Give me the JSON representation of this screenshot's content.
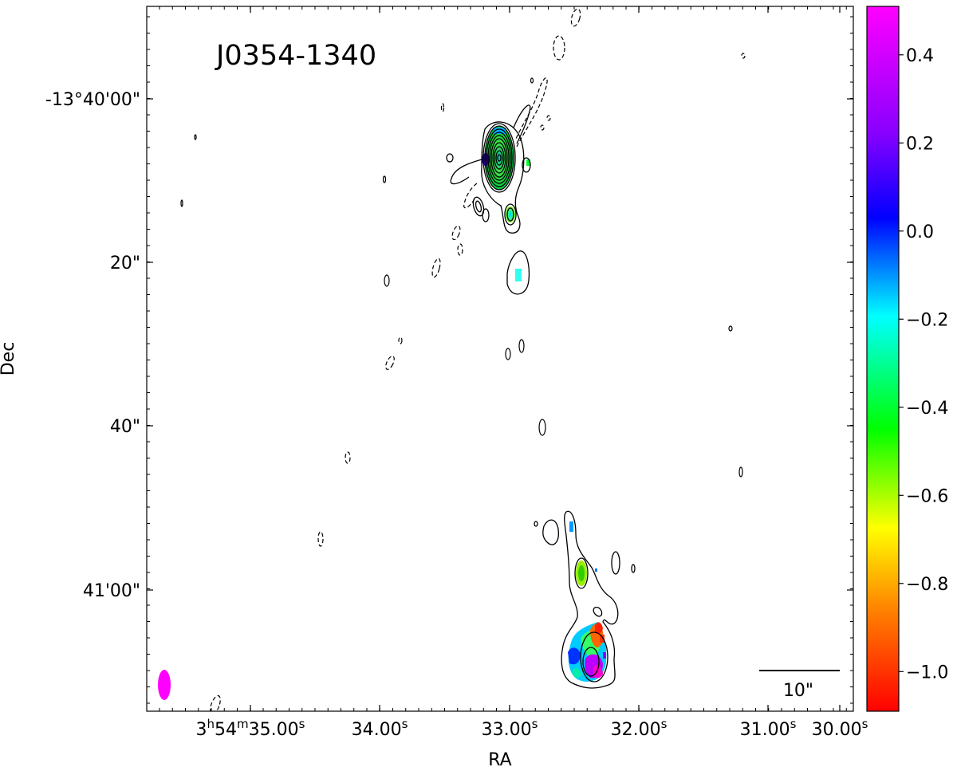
{
  "figure": {
    "source_name": "J0354-1340",
    "x_axis_title": "RA",
    "y_axis_title": "Dec",
    "scale_bar_label": "10\"",
    "beam_color": "#ff00ff"
  },
  "axes": {
    "ra_ticks": [
      {
        "hms": "3h54m35.00s",
        "main": "3",
        "parts": [
          {
            "t": "3",
            "sup": false
          },
          {
            "t": "h",
            "sup": true
          },
          {
            "t": "54",
            "sup": false
          },
          {
            "t": "m",
            "sup": true
          },
          {
            "t": "35.00",
            "sup": false
          },
          {
            "t": "s",
            "sup": true
          }
        ]
      },
      {
        "hms": "34.00s",
        "parts": [
          {
            "t": "34.00",
            "sup": false
          },
          {
            "t": "s",
            "sup": true
          }
        ]
      },
      {
        "hms": "33.00s",
        "parts": [
          {
            "t": "33.00",
            "sup": false
          },
          {
            "t": "s",
            "sup": true
          }
        ]
      },
      {
        "hms": "32.00s",
        "parts": [
          {
            "t": "32.00",
            "sup": false
          },
          {
            "t": "s",
            "sup": true
          }
        ]
      },
      {
        "hms": "31.00s",
        "parts": [
          {
            "t": "31.00",
            "sup": false
          },
          {
            "t": "s",
            "sup": true
          }
        ]
      },
      {
        "hms": "30.00s",
        "parts": [
          {
            "t": "30.00",
            "sup": false
          },
          {
            "t": "s",
            "sup": true
          }
        ]
      }
    ],
    "dec_ticks": [
      "-13°40'00\"",
      "20\"",
      "40\"",
      "41'00\""
    ]
  },
  "colorbar": {
    "ticks": [
      "0.4",
      "0.2",
      "0.0",
      "−0.2",
      "−0.4",
      "−0.6",
      "−0.8",
      "−1.0"
    ],
    "tick_values": [
      0.4,
      0.2,
      0.0,
      -0.2,
      -0.4,
      -0.6,
      -0.8,
      -1.0
    ],
    "min": -1.09,
    "max": 0.51,
    "colormap": [
      "#ff0000",
      "#ff8800",
      "#ffff00",
      "#00ff00",
      "#00ffff",
      "#0000ff",
      "#8800ff",
      "#ff00ff"
    ]
  }
}
